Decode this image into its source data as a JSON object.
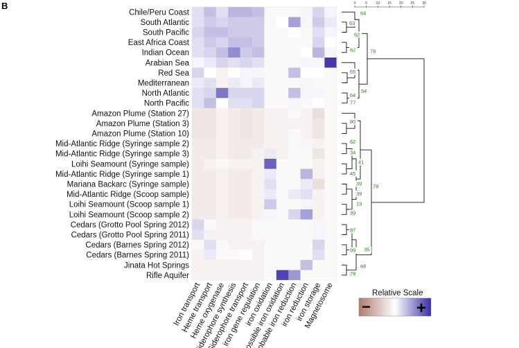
{
  "panel_label": "B",
  "chart_data": {
    "type": "heatmap",
    "title": "",
    "rows": [
      "Chile/Peru Coast",
      "South Atlantic",
      "South Pacific",
      "East Africa Coast",
      "Indian Ocean",
      "Arabian Sea",
      "Red Sea",
      "Mediterranean",
      "North Atlantic",
      "North Pacific",
      "Amazon Plume (Station 27)",
      "Amazon Plume (Station 3)",
      "Amazon Plume (Station 10)",
      "Mid-Atlantic Ridge (Syringe sample 2)",
      "Mid-Atlantic Ridge (Syringe sample 3)",
      "Loihi Seamount (Syringe sample)",
      "Mid-Atlantic Ridge (Syringe sample 1)",
      "Mariana Backarc (Syringe sample)",
      "Mid-Atlantic Ridge (Scoop sample)",
      "Loihi Seamount (Scoop sample 1)",
      "Loihi Seamount (Scoop sample 2)",
      "Cedars (Grotto Pool Spring 2012)",
      "Cedars (Grotto Pool Spring 2011)",
      "Cedars (Barnes Spring 2012)",
      "Cedars (Barnes Spring 2011)",
      "Jinata Hot Springs",
      "Rifle Aquifer"
    ],
    "columns": [
      "Iron transport",
      "Heme transport",
      "Heme oxygenase",
      "Siderophore synthesis",
      "Siderophore transport",
      "iron gene regulation",
      "iron oxidation",
      "possible iron oxidation",
      "probable iron reduction",
      "iron reduction",
      "iron storage",
      "Magnetosome"
    ],
    "value_range": [
      -1,
      1
    ],
    "values": [
      [
        0.15,
        0.3,
        0.15,
        0.35,
        0.35,
        0.3,
        -0.05,
        -0.05,
        -0.05,
        0.05,
        0.2,
        0.05
      ],
      [
        0.15,
        0.25,
        0.2,
        0.25,
        0.25,
        0.25,
        -0.05,
        0.0,
        0.45,
        0.05,
        0.25,
        0.1
      ],
      [
        0.2,
        0.3,
        0.3,
        0.25,
        0.25,
        0.25,
        -0.05,
        -0.05,
        0.0,
        -0.05,
        0.15,
        0.05
      ],
      [
        0.15,
        0.25,
        0.2,
        0.3,
        0.3,
        0.25,
        -0.05,
        -0.05,
        -0.05,
        -0.05,
        0.2,
        0.0
      ],
      [
        0.15,
        0.2,
        0.3,
        0.55,
        0.25,
        0.3,
        -0.05,
        -0.05,
        -0.05,
        0.0,
        0.35,
        0.05
      ],
      [
        0.05,
        0.1,
        0.2,
        0.15,
        0.2,
        0.15,
        -0.05,
        -0.05,
        -0.05,
        0.05,
        0.05,
        0.95
      ],
      [
        0.2,
        0.0,
        -0.1,
        0.0,
        0.05,
        0.05,
        -0.05,
        -0.05,
        0.3,
        0.0,
        0.0,
        -0.05
      ],
      [
        0.1,
        0.15,
        -0.1,
        0.1,
        0.05,
        0.1,
        -0.05,
        -0.05,
        -0.05,
        0.05,
        -0.05,
        -0.05
      ],
      [
        0.15,
        0.2,
        0.65,
        0.2,
        0.2,
        0.2,
        -0.05,
        -0.05,
        0.3,
        0.05,
        0.05,
        -0.05
      ],
      [
        0.15,
        0.3,
        0.0,
        0.15,
        0.15,
        0.2,
        -0.05,
        -0.05,
        0.05,
        -0.05,
        0.0,
        -0.05
      ],
      [
        -0.2,
        -0.2,
        -0.1,
        -0.15,
        -0.2,
        -0.15,
        -0.1,
        -0.1,
        -0.05,
        -0.1,
        -0.25,
        -0.05
      ],
      [
        -0.2,
        -0.2,
        -0.1,
        -0.15,
        -0.2,
        -0.15,
        -0.1,
        -0.1,
        -0.1,
        -0.1,
        -0.2,
        -0.05
      ],
      [
        -0.2,
        -0.2,
        -0.1,
        -0.15,
        -0.2,
        -0.15,
        -0.1,
        -0.1,
        -0.05,
        -0.1,
        -0.2,
        -0.05
      ],
      [
        -0.15,
        -0.15,
        -0.1,
        -0.15,
        -0.15,
        -0.15,
        -0.1,
        -0.1,
        -0.05,
        0.05,
        -0.1,
        -0.05
      ],
      [
        -0.15,
        -0.15,
        -0.1,
        -0.15,
        -0.15,
        -0.1,
        0.1,
        -0.1,
        -0.05,
        -0.05,
        -0.2,
        -0.05
      ],
      [
        -0.15,
        -0.1,
        -0.05,
        -0.1,
        -0.1,
        -0.1,
        0.75,
        -0.05,
        -0.05,
        -0.05,
        -0.1,
        -0.05
      ],
      [
        -0.15,
        -0.15,
        -0.1,
        -0.15,
        -0.15,
        -0.1,
        0.1,
        -0.05,
        -0.05,
        0.35,
        -0.1,
        -0.05
      ],
      [
        -0.15,
        -0.15,
        -0.1,
        -0.15,
        -0.15,
        -0.1,
        0.15,
        -0.05,
        -0.05,
        0.1,
        -0.25,
        -0.05
      ],
      [
        -0.15,
        -0.15,
        -0.1,
        -0.15,
        -0.15,
        -0.1,
        0.1,
        -0.05,
        0.1,
        0.15,
        -0.1,
        -0.05
      ],
      [
        -0.15,
        -0.15,
        -0.1,
        -0.15,
        -0.15,
        -0.1,
        0.25,
        -0.05,
        -0.05,
        0.05,
        -0.1,
        -0.05
      ],
      [
        -0.15,
        -0.15,
        -0.1,
        -0.15,
        -0.15,
        -0.1,
        0.05,
        -0.05,
        0.2,
        0.45,
        -0.1,
        -0.05
      ],
      [
        0.2,
        -0.05,
        -0.1,
        -0.1,
        -0.1,
        -0.05,
        -0.05,
        -0.05,
        -0.05,
        -0.05,
        0.05,
        -0.05
      ],
      [
        0.15,
        -0.1,
        -0.1,
        -0.1,
        -0.1,
        -0.05,
        -0.05,
        -0.05,
        -0.05,
        -0.05,
        0.05,
        -0.05
      ],
      [
        -0.05,
        0.15,
        -0.05,
        -0.1,
        -0.1,
        -0.1,
        -0.05,
        -0.05,
        -0.05,
        -0.05,
        0.2,
        -0.05
      ],
      [
        -0.1,
        0.1,
        -0.05,
        -0.05,
        0.0,
        -0.1,
        -0.05,
        -0.05,
        -0.05,
        -0.05,
        0.15,
        -0.05
      ],
      [
        -0.1,
        -0.1,
        -0.1,
        -0.1,
        -0.1,
        -0.1,
        -0.05,
        -0.05,
        -0.05,
        0.3,
        -0.05,
        -0.05
      ],
      [
        -0.1,
        -0.1,
        -0.1,
        -0.1,
        -0.1,
        -0.1,
        -0.05,
        0.9,
        0.5,
        -0.05,
        -0.05,
        -0.05
      ]
    ],
    "dendrogram_ticks": [
      "0",
      "5",
      "10",
      "15",
      "20",
      "25",
      "30"
    ],
    "bootstrap_values": [
      "63",
      "64",
      "62",
      "62",
      "78",
      "65",
      "54",
      "64",
      "77",
      "80",
      "62",
      "34",
      "41",
      "45",
      "39",
      "39",
      "19",
      "39",
      "78",
      "87",
      "99",
      "35",
      "68",
      "78"
    ],
    "legend": {
      "title": "Relative Scale",
      "low_label": "−",
      "high_label": "+",
      "low_color": "#b07b6e",
      "mid_color": "#ffffff",
      "high_color": "#3a2ea8"
    }
  }
}
